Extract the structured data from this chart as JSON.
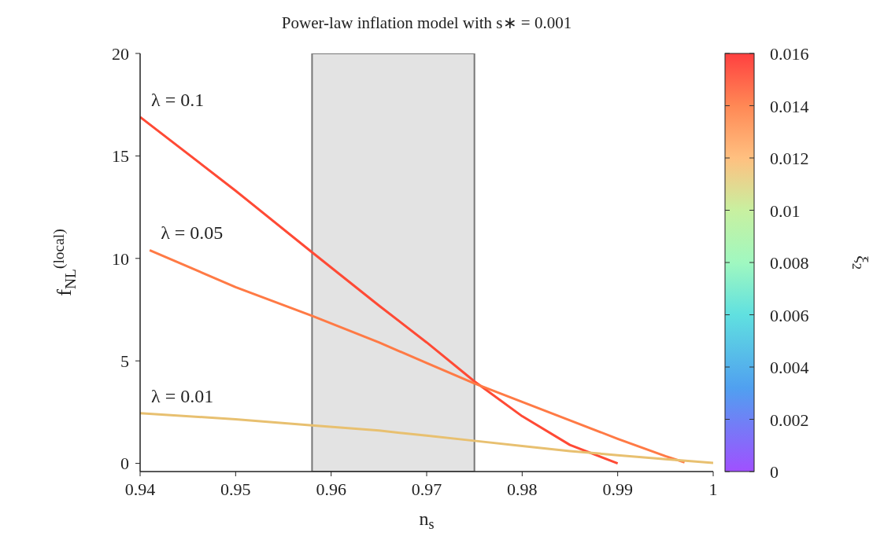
{
  "chart_data": {
    "type": "line",
    "title": "Power-law inflation model with s∗ = 0.001",
    "xlabel": "n$_{s}$",
    "ylabel": "f$_{NL}$$^{(local)}$",
    "clabel": "ξ$_{2}$",
    "series": [
      {
        "name": "λ = 0.1",
        "x": [
          0.94,
          0.95,
          0.958,
          0.965,
          0.97,
          0.975,
          0.98,
          0.985,
          0.99
        ],
        "values": [
          16.9,
          13.3,
          10.3,
          7.7,
          5.9,
          4.0,
          2.3,
          0.9,
          0.0
        ],
        "color": "#ff4a35"
      },
      {
        "name": "λ = 0.05",
        "x": [
          0.941,
          0.95,
          0.958,
          0.965,
          0.97,
          0.975,
          0.98,
          0.985,
          0.99,
          0.995,
          0.997
        ],
        "values": [
          10.4,
          8.6,
          7.2,
          5.9,
          4.9,
          3.9,
          3.0,
          2.1,
          1.2,
          0.35,
          0.05
        ],
        "color": "#ff7a45"
      },
      {
        "name": "λ = 0.01",
        "x": [
          0.94,
          0.95,
          0.958,
          0.965,
          0.97,
          0.975,
          0.98,
          0.985,
          0.99,
          0.995,
          1.0
        ],
        "values": [
          2.45,
          2.15,
          1.85,
          1.6,
          1.35,
          1.1,
          0.85,
          0.6,
          0.4,
          0.2,
          0.02
        ],
        "color": "#e8c070"
      }
    ],
    "xlim": [
      0.94,
      1
    ],
    "xticks": [
      0.94,
      0.95,
      0.96,
      0.97,
      0.98,
      0.99,
      1
    ],
    "ylim": [
      -0.4,
      20
    ],
    "yticks": [
      0,
      5,
      10,
      15,
      20
    ],
    "clim": [
      0,
      0.016
    ],
    "cticks": [
      0,
      0.002,
      0.004,
      0.006,
      0.008,
      0.01,
      0.012,
      0.014,
      0.016
    ],
    "bands": [
      {
        "axis": "x",
        "from": 0.958,
        "to": 0.975,
        "color": "#e3e3e3"
      }
    ]
  }
}
